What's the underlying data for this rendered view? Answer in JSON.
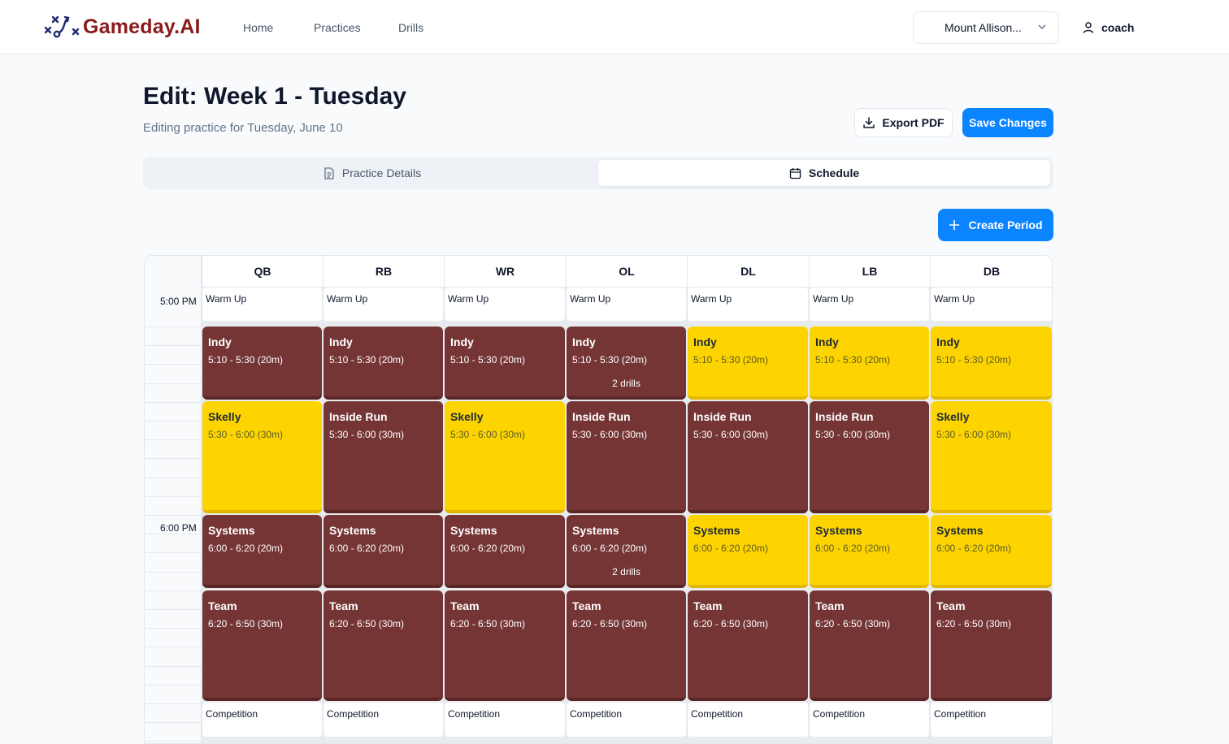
{
  "app": {
    "name": "Gameday.AI"
  },
  "nav": {
    "home": "Home",
    "practices": "Practices",
    "drills": "Drills"
  },
  "team_select": {
    "value": "Mount Allison..."
  },
  "user": {
    "name": "coach"
  },
  "header": {
    "title": "Edit: Week 1 - Tuesday",
    "subtitle": "Editing practice for Tuesday, June 10"
  },
  "actions": {
    "export": "Export PDF",
    "save": "Save Changes",
    "create_period": "Create Period"
  },
  "tabs": {
    "details": "Practice Details",
    "schedule": "Schedule",
    "active": "schedule"
  },
  "colors": {
    "maroon": "#763535",
    "gold": "#fdd400",
    "accent": "#0b84ff",
    "brand": "#8b1a1a"
  },
  "schedule": {
    "time_labels": [
      "5:00 PM",
      "6:00 PM"
    ],
    "positions": [
      "QB",
      "RB",
      "WR",
      "OL",
      "DL",
      "LB",
      "DB"
    ],
    "columns": [
      {
        "position": "QB",
        "periods": [
          {
            "title": "Warm Up",
            "style": "white"
          },
          {
            "title": "Indy",
            "time": "5:10 - 5:30 (20m)",
            "style": "maroon"
          },
          {
            "title": "Skelly",
            "time": "5:30 - 6:00 (30m)",
            "style": "gold"
          },
          {
            "title": "Systems",
            "time": "6:00 - 6:20 (20m)",
            "style": "maroon"
          },
          {
            "title": "Team",
            "time": "6:20 - 6:50 (30m)",
            "style": "maroon"
          },
          {
            "title": "Competition",
            "style": "white"
          }
        ]
      },
      {
        "position": "RB",
        "periods": [
          {
            "title": "Warm Up",
            "style": "white"
          },
          {
            "title": "Indy",
            "time": "5:10 - 5:30 (20m)",
            "style": "maroon"
          },
          {
            "title": "Inside Run",
            "time": "5:30 - 6:00 (30m)",
            "style": "maroon"
          },
          {
            "title": "Systems",
            "time": "6:00 - 6:20 (20m)",
            "style": "maroon"
          },
          {
            "title": "Team",
            "time": "6:20 - 6:50 (30m)",
            "style": "maroon"
          },
          {
            "title": "Competition",
            "style": "white"
          }
        ]
      },
      {
        "position": "WR",
        "periods": [
          {
            "title": "Warm Up",
            "style": "white"
          },
          {
            "title": "Indy",
            "time": "5:10 - 5:30 (20m)",
            "style": "maroon"
          },
          {
            "title": "Skelly",
            "time": "5:30 - 6:00 (30m)",
            "style": "gold"
          },
          {
            "title": "Systems",
            "time": "6:00 - 6:20 (20m)",
            "style": "maroon"
          },
          {
            "title": "Team",
            "time": "6:20 - 6:50 (30m)",
            "style": "maroon"
          },
          {
            "title": "Competition",
            "style": "white"
          }
        ]
      },
      {
        "position": "OL",
        "periods": [
          {
            "title": "Warm Up",
            "style": "white"
          },
          {
            "title": "Indy",
            "time": "5:10 - 5:30 (20m)",
            "style": "maroon",
            "drills": "2 drills"
          },
          {
            "title": "Inside Run",
            "time": "5:30 - 6:00 (30m)",
            "style": "maroon"
          },
          {
            "title": "Systems",
            "time": "6:00 - 6:20 (20m)",
            "style": "maroon",
            "drills": "2 drills"
          },
          {
            "title": "Team",
            "time": "6:20 - 6:50 (30m)",
            "style": "maroon"
          },
          {
            "title": "Competition",
            "style": "white"
          }
        ]
      },
      {
        "position": "DL",
        "periods": [
          {
            "title": "Warm Up",
            "style": "white"
          },
          {
            "title": "Indy",
            "time": "5:10 - 5:30 (20m)",
            "style": "gold"
          },
          {
            "title": "Inside Run",
            "time": "5:30 - 6:00 (30m)",
            "style": "maroon"
          },
          {
            "title": "Systems",
            "time": "6:00 - 6:20 (20m)",
            "style": "gold"
          },
          {
            "title": "Team",
            "time": "6:20 - 6:50 (30m)",
            "style": "maroon"
          },
          {
            "title": "Competition",
            "style": "white"
          }
        ]
      },
      {
        "position": "LB",
        "periods": [
          {
            "title": "Warm Up",
            "style": "white"
          },
          {
            "title": "Indy",
            "time": "5:10 - 5:30 (20m)",
            "style": "gold"
          },
          {
            "title": "Inside Run",
            "time": "5:30 - 6:00 (30m)",
            "style": "maroon"
          },
          {
            "title": "Systems",
            "time": "6:00 - 6:20 (20m)",
            "style": "gold"
          },
          {
            "title": "Team",
            "time": "6:20 - 6:50 (30m)",
            "style": "maroon"
          },
          {
            "title": "Competition",
            "style": "white"
          }
        ]
      },
      {
        "position": "DB",
        "periods": [
          {
            "title": "Warm Up",
            "style": "white"
          },
          {
            "title": "Indy",
            "time": "5:10 - 5:30 (20m)",
            "style": "gold"
          },
          {
            "title": "Skelly",
            "time": "5:30 - 6:00 (30m)",
            "style": "gold"
          },
          {
            "title": "Systems",
            "time": "6:00 - 6:20 (20m)",
            "style": "gold"
          },
          {
            "title": "Team",
            "time": "6:20 - 6:50 (30m)",
            "style": "maroon"
          },
          {
            "title": "Competition",
            "style": "white"
          }
        ]
      }
    ]
  }
}
